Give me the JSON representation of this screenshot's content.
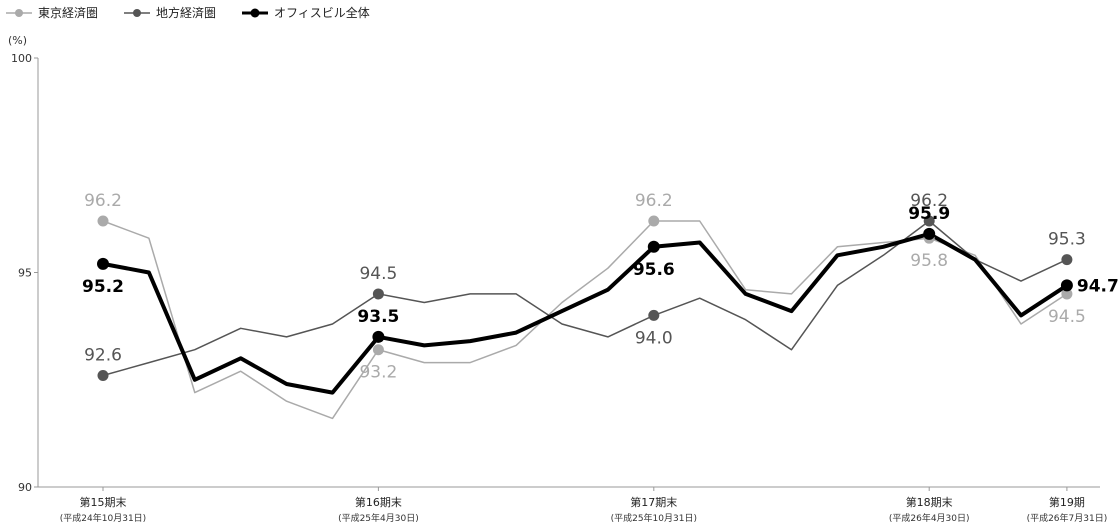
{
  "chart_data": {
    "type": "line",
    "unit": "(%)",
    "ylim": [
      90,
      100
    ],
    "yticks": [
      90,
      95,
      100
    ],
    "grid": false,
    "legend_position": "top-left",
    "x": [
      0,
      1,
      2,
      3,
      4,
      5,
      6,
      7,
      8,
      9,
      10,
      11,
      12,
      13,
      14,
      15,
      16,
      17,
      18,
      19
    ],
    "categories": [
      {
        "label": "第15期末",
        "sub": "(平成24年10月31日)",
        "x": 0
      },
      {
        "label": "第16期末",
        "sub": "(平成25年4月30日)",
        "x": 6
      },
      {
        "label": "第17期末",
        "sub": "(平成25年10月31日)",
        "x": 12
      },
      {
        "label": "第18期末",
        "sub": "(平成26年4月30日)",
        "x": 18
      },
      {
        "label": "第19期",
        "sub": "(平成26年7月31日)",
        "x": 21
      }
    ],
    "series": [
      {
        "name": "東京経済圏",
        "color": "#aaaaaa",
        "width": 1.5,
        "x": [
          0,
          1,
          2,
          3,
          4,
          5,
          6,
          7,
          8,
          9,
          10,
          11,
          12,
          13,
          14,
          15,
          16,
          17,
          18,
          19,
          20,
          21
        ],
        "values": [
          96.2,
          95.8,
          92.2,
          92.7,
          92.0,
          91.6,
          93.2,
          92.9,
          92.9,
          93.3,
          94.3,
          95.1,
          96.2,
          96.2,
          94.6,
          94.5,
          95.6,
          95.7,
          95.8,
          95.4,
          93.8,
          94.5
        ],
        "labels": [
          {
            "x": 0,
            "text": "96.2",
            "pos": "above"
          },
          {
            "x": 6,
            "text": "93.2",
            "pos": "below"
          },
          {
            "x": 12,
            "text": "96.2",
            "pos": "above"
          },
          {
            "x": 18,
            "text": "95.8",
            "pos": "below"
          },
          {
            "x": 21,
            "text": "94.5",
            "pos": "below"
          }
        ],
        "markers": [
          0,
          6,
          12,
          18,
          21
        ]
      },
      {
        "name": "地方経済圏",
        "color": "#555555",
        "width": 1.5,
        "x": [
          0,
          1,
          2,
          3,
          4,
          5,
          6,
          7,
          8,
          9,
          10,
          11,
          12,
          13,
          14,
          15,
          16,
          17,
          18,
          19,
          20,
          21
        ],
        "values": [
          92.6,
          92.9,
          93.2,
          93.7,
          93.5,
          93.8,
          94.5,
          94.3,
          94.5,
          94.5,
          93.8,
          93.5,
          94.0,
          94.4,
          93.9,
          93.2,
          94.7,
          95.4,
          96.2,
          95.3,
          94.8,
          95.3
        ],
        "labels": [
          {
            "x": 0,
            "text": "92.6",
            "pos": "above"
          },
          {
            "x": 6,
            "text": "94.5",
            "pos": "above"
          },
          {
            "x": 12,
            "text": "94.0",
            "pos": "below"
          },
          {
            "x": 18,
            "text": "96.2",
            "pos": "above"
          },
          {
            "x": 21,
            "text": "95.3",
            "pos": "above"
          }
        ],
        "markers": [
          0,
          6,
          12,
          18,
          21
        ]
      },
      {
        "name": "オフィスビル全体",
        "color": "#000000",
        "width": 4,
        "x": [
          0,
          1,
          2,
          3,
          4,
          5,
          6,
          7,
          8,
          9,
          10,
          11,
          12,
          13,
          14,
          15,
          16,
          17,
          18,
          19,
          20,
          21
        ],
        "values": [
          95.2,
          95.0,
          92.5,
          93.0,
          92.4,
          92.2,
          93.5,
          93.3,
          93.4,
          93.6,
          94.1,
          94.6,
          95.6,
          95.7,
          94.5,
          94.1,
          95.4,
          95.6,
          95.9,
          95.3,
          94.0,
          94.7
        ],
        "labels": [
          {
            "x": 0,
            "text": "95.2",
            "pos": "below"
          },
          {
            "x": 6,
            "text": "93.5",
            "pos": "above"
          },
          {
            "x": 12,
            "text": "95.6",
            "pos": "below"
          },
          {
            "x": 18,
            "text": "95.9",
            "pos": "above"
          },
          {
            "x": 21,
            "text": "94.7",
            "pos": "right"
          }
        ],
        "markers": [
          0,
          6,
          12,
          18,
          21
        ]
      }
    ]
  }
}
